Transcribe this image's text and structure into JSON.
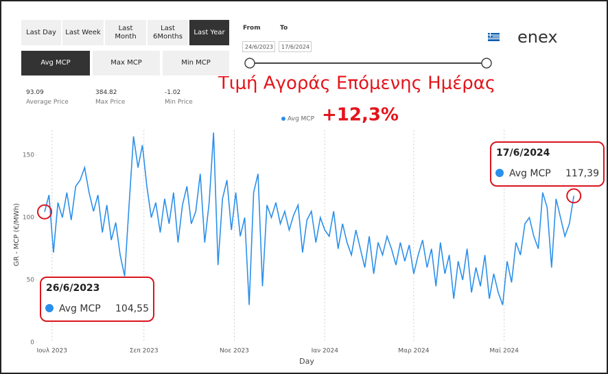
{
  "header": {
    "periods": [
      "Last Day",
      "Last Week",
      "Last Month",
      "Last 6Months",
      "Last Year"
    ],
    "measures": [
      "Avg MCP",
      "Max MCP",
      "Min MCP"
    ],
    "stats": [
      {
        "value": 93.09,
        "label": "Average Price"
      },
      {
        "value": 384.82,
        "label": "Max Price"
      },
      {
        "value": -1.02,
        "label": "Min Price"
      }
    ],
    "from_label": "From",
    "to_label": "To",
    "from": "24/6/2023",
    "to": "17/6/2024",
    "logo": "enex"
  },
  "chart_data": {
    "type": "line",
    "title": "Τιμή Αγοράς Επόμενης Ημέρας",
    "subtitle": "+12,3%",
    "x_label": "Day",
    "y_label": "GR - MCP (€/MWh)",
    "x": [
      "2023-06-26",
      "2023-06-29",
      "2023-07-02",
      "2023-07-05",
      "2023-07-08",
      "2023-07-11",
      "2023-07-14",
      "2023-07-17",
      "2023-07-20",
      "2023-07-23",
      "2023-07-26",
      "2023-07-29",
      "2023-08-01",
      "2023-08-04",
      "2023-08-07",
      "2023-08-10",
      "2023-08-13",
      "2023-08-16",
      "2023-08-19",
      "2023-08-22",
      "2023-08-25",
      "2023-08-28",
      "2023-08-31",
      "2023-09-03",
      "2023-09-06",
      "2023-09-09",
      "2023-09-12",
      "2023-09-15",
      "2023-09-18",
      "2023-09-21",
      "2023-09-24",
      "2023-09-27",
      "2023-09-30",
      "2023-10-03",
      "2023-10-06",
      "2023-10-09",
      "2023-10-12",
      "2023-10-15",
      "2023-10-18",
      "2023-10-21",
      "2023-10-24",
      "2023-10-27",
      "2023-10-30",
      "2023-11-02",
      "2023-11-05",
      "2023-11-08",
      "2023-11-11",
      "2023-11-14",
      "2023-11-17",
      "2023-11-20",
      "2023-11-23",
      "2023-11-26",
      "2023-11-29",
      "2023-12-02",
      "2023-12-05",
      "2023-12-08",
      "2023-12-11",
      "2023-12-14",
      "2023-12-17",
      "2023-12-20",
      "2023-12-23",
      "2023-12-26",
      "2023-12-29",
      "2024-01-01",
      "2024-01-04",
      "2024-01-07",
      "2024-01-10",
      "2024-01-13",
      "2024-01-16",
      "2024-01-19",
      "2024-01-22",
      "2024-01-25",
      "2024-01-28",
      "2024-01-31",
      "2024-02-03",
      "2024-02-06",
      "2024-02-09",
      "2024-02-12",
      "2024-02-15",
      "2024-02-18",
      "2024-02-21",
      "2024-02-24",
      "2024-02-27",
      "2024-03-01",
      "2024-03-04",
      "2024-03-07",
      "2024-03-10",
      "2024-03-13",
      "2024-03-16",
      "2024-03-19",
      "2024-03-22",
      "2024-03-25",
      "2024-03-28",
      "2024-03-31",
      "2024-04-03",
      "2024-04-06",
      "2024-04-09",
      "2024-04-12",
      "2024-04-15",
      "2024-04-18",
      "2024-04-21",
      "2024-04-24",
      "2024-04-27",
      "2024-04-30",
      "2024-05-03",
      "2024-05-06",
      "2024-05-09",
      "2024-05-12",
      "2024-05-15",
      "2024-05-18",
      "2024-05-21",
      "2024-05-24",
      "2024-05-27",
      "2024-05-30",
      "2024-06-02",
      "2024-06-05",
      "2024-06-08",
      "2024-06-11",
      "2024-06-14",
      "2024-06-17"
    ],
    "series": [
      {
        "name": "Avg MCP",
        "color": "#2a8fea",
        "values": [
          104.55,
          118,
          72,
          112,
          100,
          120,
          98,
          125,
          130,
          140,
          120,
          105,
          118,
          88,
          110,
          82,
          96,
          70,
          53,
          110,
          165,
          140,
          158,
          125,
          100,
          112,
          88,
          115,
          95,
          120,
          80,
          110,
          125,
          95,
          105,
          135,
          80,
          112,
          168,
          62,
          115,
          130,
          90,
          120,
          85,
          100,
          30,
          120,
          135,
          45,
          110,
          100,
          112,
          95,
          105,
          90,
          102,
          110,
          72,
          98,
          105,
          80,
          100,
          90,
          85,
          105,
          75,
          95,
          80,
          70,
          90,
          75,
          60,
          85,
          55,
          80,
          70,
          85,
          75,
          62,
          80,
          65,
          78,
          55,
          70,
          82,
          60,
          75,
          45,
          80,
          55,
          70,
          35,
          65,
          50,
          75,
          40,
          60,
          45,
          70,
          35,
          55,
          40,
          30,
          65,
          48,
          80,
          70,
          95,
          100,
          85,
          75,
          120,
          108,
          60,
          115,
          100,
          85,
          95,
          117.39
        ],
        "value_labels": [
          "104,55",
          null,
          null,
          null,
          null,
          null,
          null,
          null,
          null,
          null,
          null,
          null,
          null,
          null,
          null,
          null,
          null,
          null,
          null,
          null,
          null,
          null,
          null,
          null,
          null,
          null,
          null,
          null,
          null,
          null,
          null,
          null,
          null,
          null,
          null,
          null,
          null,
          null,
          null,
          null,
          null,
          null,
          null,
          null,
          null,
          null,
          null,
          null,
          null,
          null,
          null,
          null,
          null,
          null,
          null,
          null,
          null,
          null,
          null,
          null,
          null,
          null,
          null,
          null,
          null,
          null,
          null,
          null,
          null,
          null,
          null,
          null,
          null,
          null,
          null,
          null,
          null,
          null,
          null,
          null,
          null,
          null,
          null,
          null,
          null,
          null,
          null,
          null,
          null,
          null,
          null,
          null,
          null,
          null,
          null,
          null,
          null,
          null,
          null,
          null,
          null,
          null,
          null,
          null,
          null,
          null,
          null,
          null,
          null,
          null,
          null,
          null,
          null,
          null,
          null,
          null,
          null,
          null,
          null,
          "117,39"
        ]
      }
    ],
    "annotations": [
      "26/6/2023",
      "17/6/2024"
    ],
    "xlim": [
      "2023-06-20",
      "2024-06-22"
    ],
    "xticks": [
      {
        "value": "2023-07-01",
        "label": "Ιουλ 2023"
      },
      {
        "value": "2023-09-01",
        "label": "Σεπ 2023"
      },
      {
        "value": "2023-11-01",
        "label": "Νοε 2023"
      },
      {
        "value": "2024-01-01",
        "label": "Ιαν 2024"
      },
      {
        "value": "2024-03-01",
        "label": "Μαρ 2024"
      },
      {
        "value": "2024-05-01",
        "label": "Μαϊ 2024"
      }
    ],
    "ylim": [
      0,
      170
    ],
    "yticks": [
      0,
      50,
      100,
      150
    ],
    "grid": true
  }
}
